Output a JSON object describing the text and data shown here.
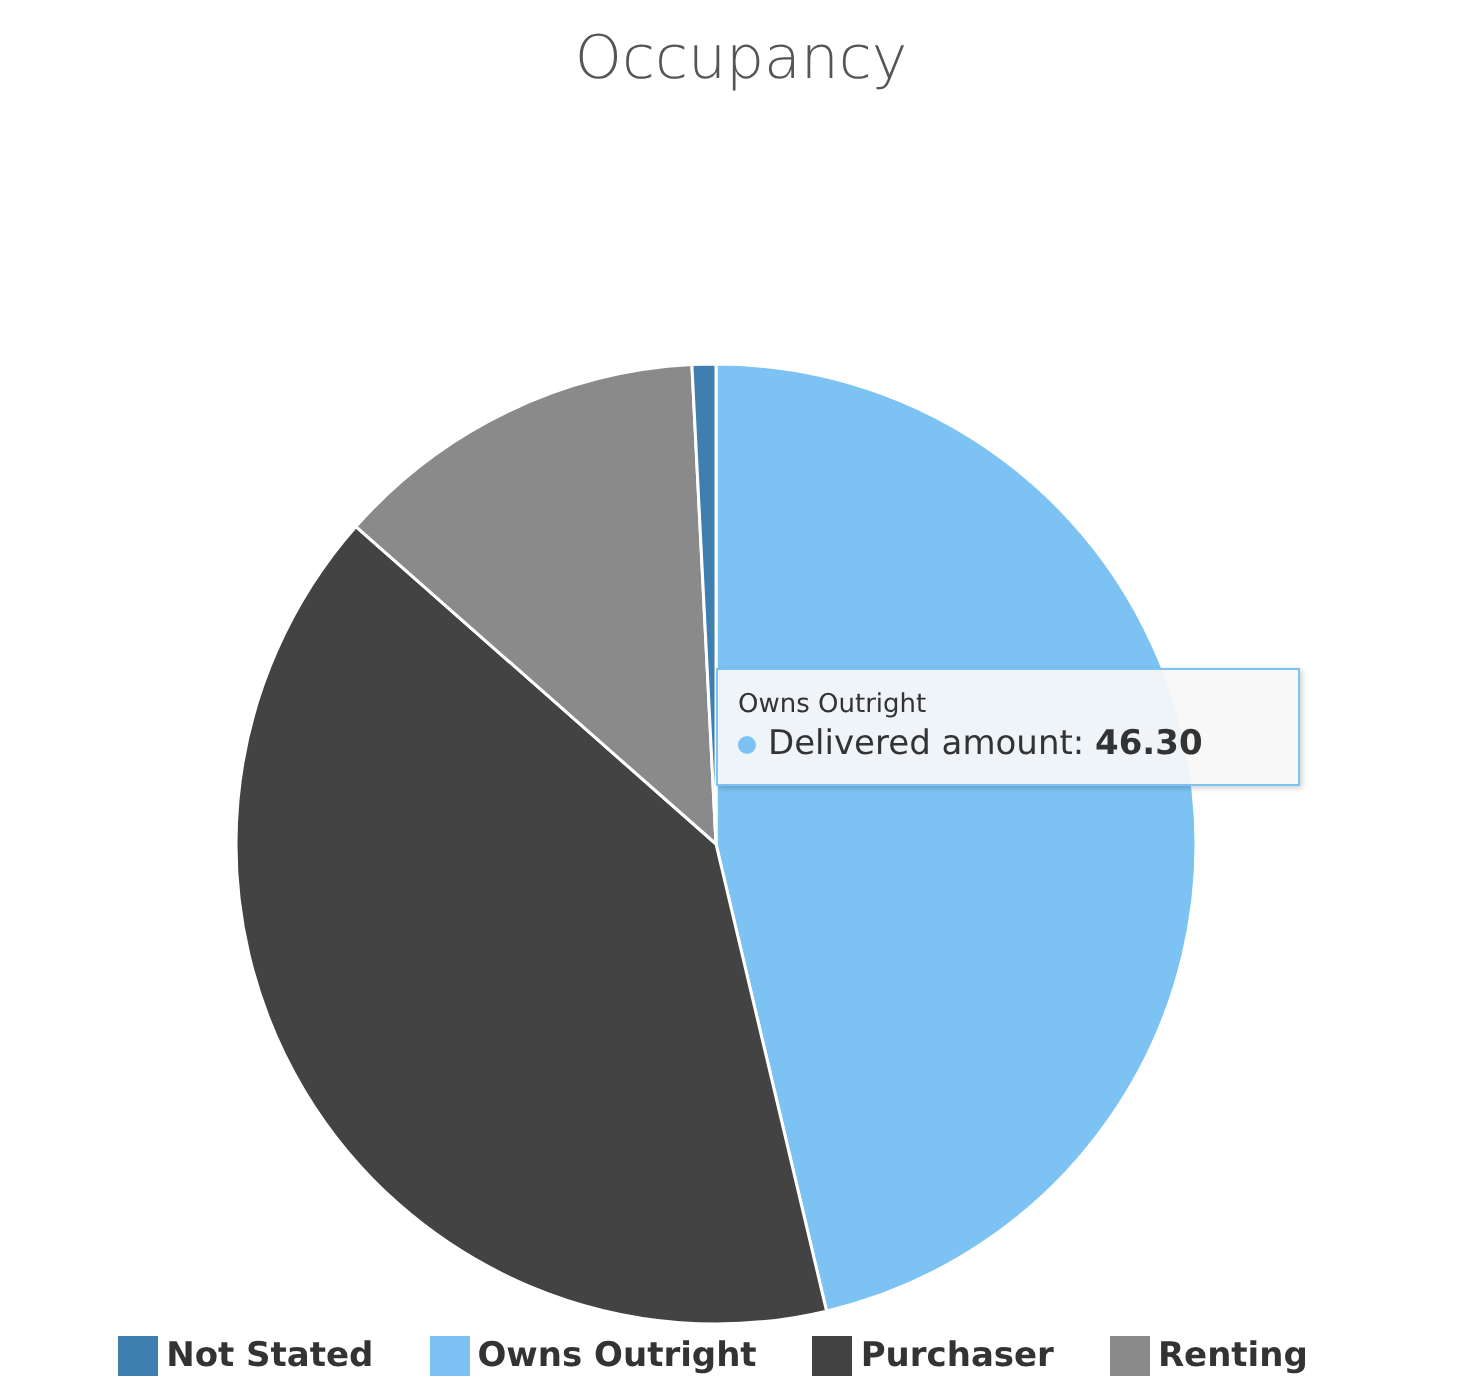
{
  "chart_data": {
    "type": "pie",
    "title": "Occupancy",
    "categories": [
      "Owns Outright",
      "Purchaser",
      "Renting",
      "Not Stated"
    ],
    "values": [
      46.3,
      40.2,
      12.7,
      0.8
    ],
    "colors": [
      "#7cc3f3",
      "#434343",
      "#8a8a8a",
      "#3f7fb0"
    ],
    "legend": "bottom",
    "annotations": [
      "Owns Outright",
      "Delivered amount: 46.30"
    ]
  }
}
